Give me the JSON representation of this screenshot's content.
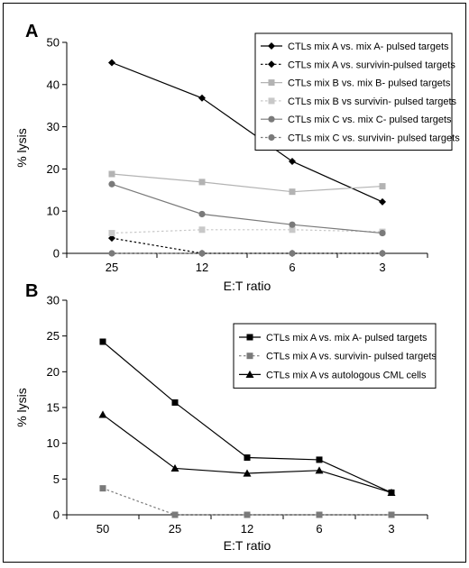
{
  "chart_data": [
    {
      "panel": "A",
      "type": "line",
      "categories": [
        "25",
        "12",
        "6",
        "3"
      ],
      "xlabel": "E:T ratio",
      "ylabel": "% lysis",
      "ylim": [
        0,
        50
      ],
      "yticks": [
        0,
        10,
        20,
        30,
        40,
        50
      ],
      "legend_position": "top-right",
      "series": [
        {
          "name": "CTLs mix A vs. mix A- pulsed targets",
          "values": [
            45.2,
            36.8,
            21.8,
            12.2
          ],
          "color": "#000000",
          "marker": "diamond",
          "dashed": false
        },
        {
          "name": "CTLs mix A vs. survivin-pulsed targets",
          "values": [
            3.6,
            0.0,
            0.0,
            0.0
          ],
          "color": "#000000",
          "marker": "diamond",
          "dashed": true
        },
        {
          "name": "CTLs mix B vs. mix B- pulsed targets",
          "values": [
            18.8,
            16.9,
            14.6,
            15.9
          ],
          "color": "#b3b3b3",
          "marker": "square",
          "dashed": false
        },
        {
          "name": "CTLs mix B vs survivin- pulsed targets",
          "values": [
            4.8,
            5.6,
            5.6,
            5.1
          ],
          "color": "#c8c8c8",
          "marker": "square",
          "dashed": true
        },
        {
          "name": "CTLs mix C vs. mix C- pulsed targets",
          "values": [
            16.4,
            9.3,
            6.8,
            4.8
          ],
          "color": "#7a7a7a",
          "marker": "circle",
          "dashed": false
        },
        {
          "name": "CTLs mix C vs. survivin- pulsed targets",
          "values": [
            0.0,
            0.0,
            0.0,
            0.0
          ],
          "color": "#7a7a7a",
          "marker": "circle",
          "dashed": true
        }
      ]
    },
    {
      "panel": "B",
      "type": "line",
      "categories": [
        "50",
        "25",
        "12",
        "6",
        "3"
      ],
      "xlabel": "E:T ratio",
      "ylabel": "% lysis",
      "ylim": [
        0,
        30
      ],
      "yticks": [
        0,
        5,
        10,
        15,
        20,
        25,
        30
      ],
      "legend_position": "top-right",
      "series": [
        {
          "name": "CTLs mix A vs. mix A- pulsed targets",
          "values": [
            24.2,
            15.7,
            8.0,
            7.7,
            3.1
          ],
          "color": "#000000",
          "marker": "square",
          "dashed": false
        },
        {
          "name": "CTLs mix A vs. survivin- pulsed targets",
          "values": [
            3.7,
            0.0,
            0.0,
            0.0,
            0.0
          ],
          "color": "#7a7a7a",
          "marker": "square",
          "dashed": true
        },
        {
          "name": "CTLs mix A vs autologous CML cells",
          "values": [
            14.0,
            6.5,
            5.8,
            6.2,
            3.1
          ],
          "color": "#000000",
          "marker": "triangle",
          "dashed": false
        }
      ]
    }
  ]
}
